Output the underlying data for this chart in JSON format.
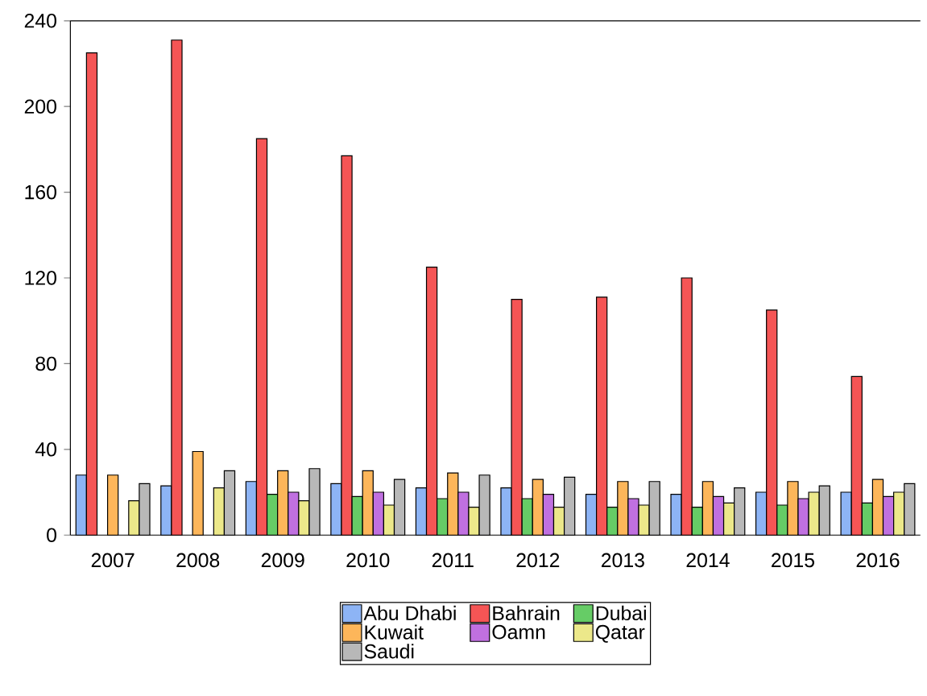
{
  "chart_data": {
    "type": "bar",
    "categories": [
      "2007",
      "2008",
      "2009",
      "2010",
      "2011",
      "2012",
      "2013",
      "2014",
      "2015",
      "2016"
    ],
    "series": [
      {
        "name": "Abu Dhabi",
        "color": "#8db4f5",
        "values": [
          28,
          23,
          25,
          24,
          22,
          22,
          19,
          19,
          20,
          20
        ]
      },
      {
        "name": "Bahrain",
        "color": "#f55555",
        "values": [
          225,
          231,
          185,
          177,
          125,
          110,
          111,
          120,
          105,
          74
        ]
      },
      {
        "name": "Dubai",
        "color": "#66cc66",
        "values": [
          null,
          null,
          19,
          18,
          17,
          17,
          13,
          13,
          14,
          15
        ]
      },
      {
        "name": "Kuwait",
        "color": "#fdb65a",
        "values": [
          28,
          39,
          30,
          30,
          29,
          26,
          25,
          25,
          25,
          26
        ]
      },
      {
        "name": "Oamn",
        "color": "#c070e0",
        "values": [
          null,
          null,
          20,
          20,
          20,
          19,
          17,
          18,
          17,
          18
        ]
      },
      {
        "name": "Qatar",
        "color": "#ece88a",
        "values": [
          16,
          22,
          16,
          14,
          13,
          13,
          14,
          15,
          20,
          20
        ]
      },
      {
        "name": "Saudi",
        "color": "#b8b8b8",
        "values": [
          24,
          30,
          31,
          26,
          28,
          27,
          25,
          22,
          23,
          24
        ]
      }
    ],
    "ylim": [
      0,
      240
    ],
    "yticks": [
      0,
      40,
      80,
      120,
      160,
      200,
      240
    ],
    "grid": false,
    "legend": "bottom"
  }
}
